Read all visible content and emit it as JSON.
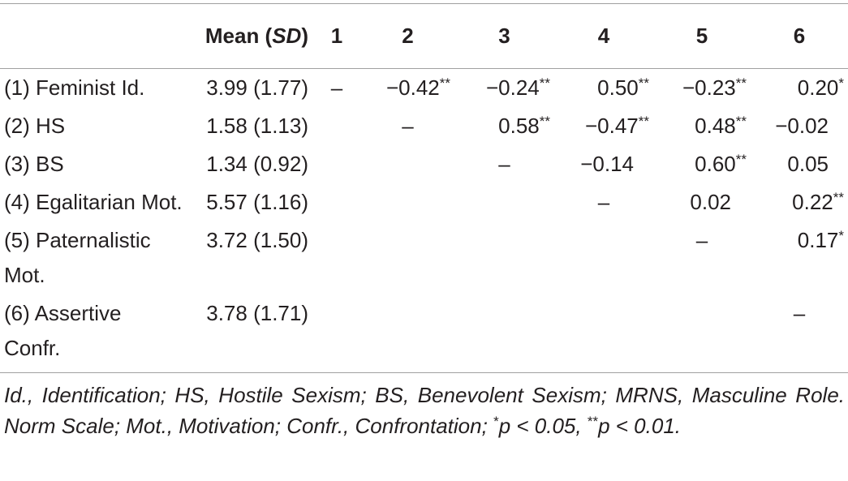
{
  "header": {
    "mean": [
      "Mean (",
      "SD",
      ")"
    ],
    "columns": [
      "1",
      "2",
      "3",
      "4",
      "5",
      "6"
    ]
  },
  "table": {
    "rows": [
      {
        "label": "(1) Feminist Id.",
        "mean": "3.99 (1.77)",
        "cells": [
          {
            "value": "–"
          },
          {
            "value": "−0.42",
            "sig": "**"
          },
          {
            "value": "−0.24",
            "sig": "**"
          },
          {
            "value": "0.50",
            "sig": "**"
          },
          {
            "value": "−0.23",
            "sig": "**"
          },
          {
            "value": "0.20",
            "sig": "*"
          }
        ]
      },
      {
        "label": "(2) HS",
        "mean": "1.58 (1.13)",
        "cells": [
          {
            "value": "–"
          },
          {
            "value": "0.58",
            "sig": "**"
          },
          {
            "value": "−0.47",
            "sig": "**"
          },
          {
            "value": "0.48",
            "sig": "**"
          },
          {
            "value": "−0.02"
          }
        ]
      },
      {
        "label": "(3) BS",
        "mean": "1.34 (0.92)",
        "cells": [
          {
            "value": "–"
          },
          {
            "value": "−0.14"
          },
          {
            "value": "0.60",
            "sig": "**"
          },
          {
            "value": "0.05"
          }
        ]
      },
      {
        "label": "(4) Egalitarian Mot.",
        "mean": "5.57 (1.16)",
        "cells": [
          {
            "value": "–"
          },
          {
            "value": "0.02"
          },
          {
            "value": "0.22",
            "sig": "**"
          }
        ]
      },
      {
        "label": "(5) Paternalistic Mot.",
        "mean": "3.72 (1.50)",
        "cells": [
          {
            "value": "–"
          },
          {
            "value": "0.17",
            "sig": "*"
          }
        ]
      },
      {
        "label": "(6) Assertive Confr.",
        "mean": "3.78 (1.71)",
        "cells": [
          {
            "value": "–"
          }
        ]
      }
    ]
  },
  "footnote": [
    {
      "text": "Id., Identification; HS, Hostile Sexism; BS, Benevolent Sexism; MRNS, Masculine Role. Norm Scale; Mot., Motivation; Confr., Confrontation; "
    },
    {
      "sup": "*"
    },
    {
      "text": "p < 0.05, "
    },
    {
      "sup": "**"
    },
    {
      "text": "p < 0.01."
    }
  ]
}
